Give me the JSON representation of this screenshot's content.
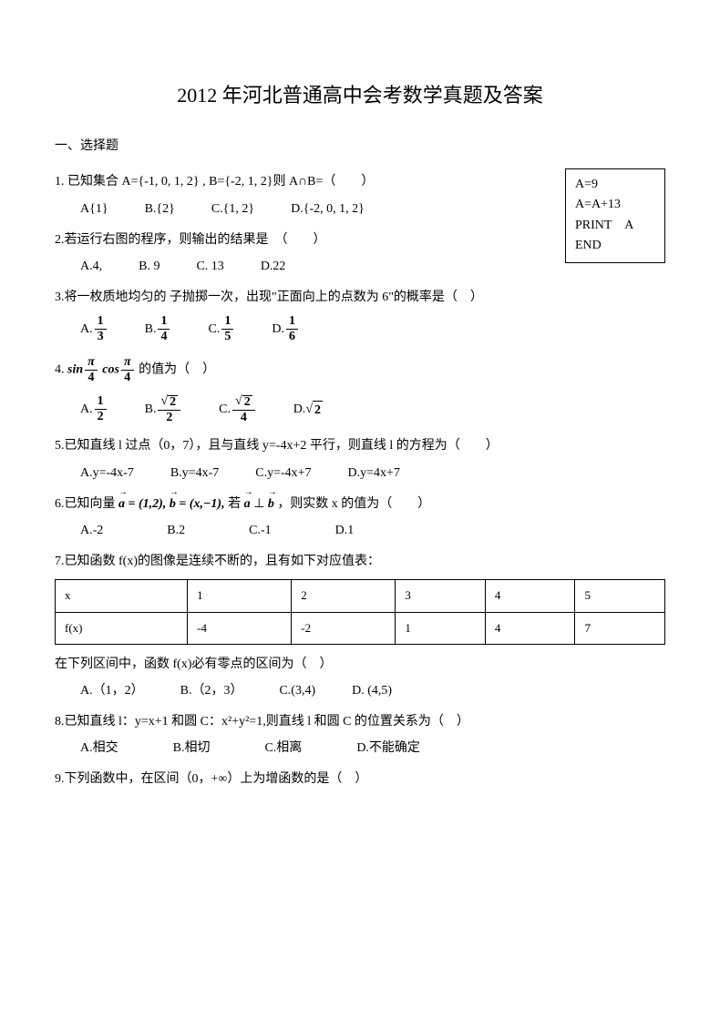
{
  "title": "2012 年河北普通高中会考数学真题及答案",
  "section1": "一、选择题",
  "codebox": {
    "l1": "A=9",
    "l2": "A=A+13",
    "l3": "PRINT　A",
    "l4": "END"
  },
  "q1": {
    "stem": "1. 已知集合 A={-1, 0, 1, 2} , B={-2, 1, 2}则 A∩B=（　　）",
    "a": "A{1}",
    "b": "B.{2}",
    "c": "C.{1, 2}",
    "d": "D.{-2, 0, 1, 2}"
  },
  "q2": {
    "stem": "2.若运行右图的程序，则输出的结果是　（　　）",
    "a": "A.4,",
    "b": "B. 9",
    "c": "C. 13",
    "d": "D.22"
  },
  "q3": {
    "stem": "3.将一枚质地均匀的 子抛掷一次，出现\"正面向上的点数为 6\"的概率是（　）",
    "a_pre": "A.",
    "a_n": "1",
    "a_d": "3",
    "b_pre": "B.",
    "b_n": "1",
    "b_d": "4",
    "c_pre": "C.",
    "c_n": "1",
    "c_d": "5",
    "d_pre": "D.",
    "d_n": "1",
    "d_d": "6"
  },
  "q4": {
    "stem_pre": "4.",
    "stem_sin": "sin",
    "sn": "π",
    "sd": "4",
    "stem_cos": "cos",
    "cn": "π",
    "cd": "4",
    "stem_post": "的值为（　）",
    "a_pre": "A.",
    "a_n": "1",
    "a_d": "2",
    "b_pre": "B.",
    "b_n": "2",
    "b_d": "2",
    "c_pre": "C.",
    "c_n": "2",
    "c_d": "4",
    "d_pre": "D.",
    "d_v": "2"
  },
  "q5": {
    "stem": "5.已知直线 l 过点（0，7），且与直线 y=-4x+2 平行，则直线 l 的方程为（　　）",
    "a": "A.y=-4x-7",
    "b": "B.y=4x-7",
    "c": "C.y=-4x+7",
    "d": "D.y=4x+7"
  },
  "q6": {
    "stem_pre": "6.已知向量",
    "a_vec": "a",
    "a_val": " = (1,2),",
    "b_vec": "b",
    "b_val": " = (x,−1),",
    "stem_mid": "若",
    "perp": " ⊥ ",
    "stem_post": "，则实数 x 的值为（　　）",
    "a": "A.-2",
    "b": "B.2",
    "c": "C.-1",
    "d": "D.1"
  },
  "q7": {
    "stem": "7.已知函数 f(x)的图像是连续不断的，且有如下对应值表：",
    "table": {
      "h": [
        "x",
        "1",
        "2",
        "3",
        "4",
        "5"
      ],
      "r": [
        "f(x)",
        "-4",
        "-2",
        "1",
        "4",
        "7"
      ]
    },
    "sub": "在下列区间中，函数 f(x)必有零点的区间为（　）",
    "a": "A.（1，2）",
    "b": "B.（2，3）",
    "c": "C.(3,4)",
    "d": "D. (4,5)"
  },
  "q8": {
    "stem": "8.已知直线 l：y=x+1 和圆 C：x²+y²=1,则直线 l 和圆 C 的位置关系为（　）",
    "a": "A.相交",
    "b": "B.相切",
    "c": "C.相离",
    "d": "D.不能确定"
  },
  "q9": {
    "stem": "9.下列函数中，在区间（0，+∞）上为增函数的是（　）"
  },
  "style": {
    "title_color": "#000000",
    "text_color": "#000000",
    "bg": "#ffffff",
    "border": "#000000",
    "title_fontsize": 22,
    "body_fontsize": 14
  }
}
